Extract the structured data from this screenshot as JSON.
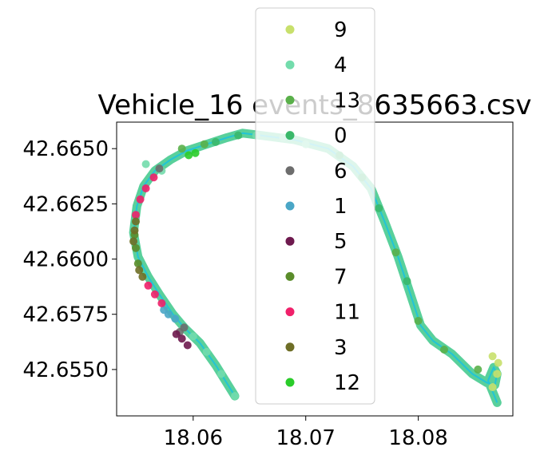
{
  "chart_data": {
    "type": "scatter",
    "title": "Vehicle_16 events_8635663.csv",
    "xlabel": "",
    "ylabel": "",
    "xlim": [
      18.0532,
      18.0884
    ],
    "ylim": [
      42.6529,
      42.6662
    ],
    "x_ticks": [
      {
        "value": 18.06,
        "label": "18.06"
      },
      {
        "value": 18.07,
        "label": "18.07"
      },
      {
        "value": 18.08,
        "label": "18.08"
      }
    ],
    "y_ticks": [
      {
        "value": 42.655,
        "label": "42.6550"
      },
      {
        "value": 42.6575,
        "label": "42.6575"
      },
      {
        "value": 42.66,
        "label": "42.6600"
      },
      {
        "value": 42.6625,
        "label": "42.6625"
      },
      {
        "value": 42.665,
        "label": "42.6650"
      }
    ],
    "grid": false,
    "legend_position": "top-center",
    "route": [
      [
        18.0637,
        42.6538
      ],
      [
        18.062,
        42.6552
      ],
      [
        18.0606,
        42.6562
      ],
      [
        18.0592,
        42.6569
      ],
      [
        18.0582,
        42.6575
      ],
      [
        18.057,
        42.6584
      ],
      [
        18.056,
        42.6592
      ],
      [
        18.0551,
        42.6601
      ],
      [
        18.0547,
        42.6612
      ],
      [
        18.055,
        42.6624
      ],
      [
        18.0556,
        42.6633
      ],
      [
        18.0566,
        42.664
      ],
      [
        18.058,
        42.6645
      ],
      [
        18.0594,
        42.6649
      ],
      [
        18.0612,
        42.6652
      ],
      [
        18.063,
        42.6655
      ],
      [
        18.0644,
        42.6657
      ],
      [
        18.066,
        42.6656
      ],
      [
        18.069,
        42.6654
      ],
      [
        18.072,
        42.665
      ],
      [
        18.0742,
        42.6642
      ],
      [
        18.0758,
        42.6632
      ],
      [
        18.077,
        42.6617
      ],
      [
        18.0782,
        42.6601
      ],
      [
        18.0793,
        42.6584
      ],
      [
        18.0802,
        42.657
      ],
      [
        18.0813,
        42.6563
      ],
      [
        18.083,
        42.6557
      ],
      [
        18.0848,
        42.6548
      ],
      [
        18.0861,
        42.6544
      ],
      [
        18.0868,
        42.6543
      ],
      [
        18.087,
        42.6548
      ],
      [
        18.0867,
        42.6551
      ],
      [
        18.0862,
        42.6545
      ],
      [
        18.087,
        42.6535
      ]
    ],
    "series": [
      {
        "name": "9",
        "color": "#c8e06c",
        "x": [
          18.0866,
          18.087,
          18.0871,
          18.0866
        ],
        "y": [
          42.6542,
          42.6548,
          42.6553,
          42.6556
        ]
      },
      {
        "name": "4",
        "color": "#73dcac",
        "x": [
          18.0637,
          18.0625,
          18.0612,
          18.06,
          18.0572,
          18.0558,
          18.0656,
          18.068,
          18.07
        ],
        "y": [
          42.6538,
          42.6548,
          42.6558,
          42.6565,
          42.664,
          42.6643,
          42.6656,
          42.6655,
          42.6652
        ]
      },
      {
        "name": "13",
        "color": "#5ab04a",
        "x": [
          18.078,
          18.08,
          18.0823,
          18.0853,
          18.059,
          18.061
        ],
        "y": [
          42.6603,
          42.6572,
          42.6559,
          42.655,
          42.665,
          42.6652
        ]
      },
      {
        "name": "0",
        "color": "#3ab86a",
        "x": [
          18.062,
          18.064,
          18.073,
          18.075,
          18.0765,
          18.079
        ],
        "y": [
          42.6653,
          42.6656,
          42.6647,
          42.6637,
          42.6623,
          42.659
        ]
      },
      {
        "name": "6",
        "color": "#6d6d6d",
        "x": [
          18.0588,
          18.0592,
          18.057
        ],
        "y": [
          42.6567,
          42.6569,
          42.6641
        ]
      },
      {
        "name": "1",
        "color": "#4aa6c6",
        "x": [
          18.0578,
          18.0574,
          18.0584
        ],
        "y": [
          42.6575,
          42.6577,
          42.6573
        ]
      },
      {
        "name": "5",
        "color": "#6e1a4e",
        "x": [
          18.0585,
          18.059,
          18.0595
        ],
        "y": [
          42.6566,
          42.6564,
          42.6561
        ]
      },
      {
        "name": "7",
        "color": "#5a8c2a",
        "x": [
          18.0551,
          18.0549,
          18.0548
        ],
        "y": [
          42.6598,
          42.6605,
          42.6611
        ]
      },
      {
        "name": "11",
        "color": "#f0206a",
        "x": [
          18.056,
          18.0566,
          18.0572,
          18.0549,
          18.0553,
          18.0558,
          18.0565
        ],
        "y": [
          42.6588,
          42.6584,
          42.658,
          42.662,
          42.6627,
          42.6632,
          42.6637
        ]
      },
      {
        "name": "3",
        "color": "#6e6e26",
        "x": [
          18.0547,
          18.0548,
          18.0549,
          18.0552,
          18.0555
        ],
        "y": [
          42.6608,
          42.6613,
          42.6617,
          42.6595,
          42.6592
        ]
      },
      {
        "name": "12",
        "color": "#2acc2a",
        "x": [
          18.0596,
          18.0602
        ],
        "y": [
          42.6647,
          42.6648
        ]
      }
    ]
  }
}
